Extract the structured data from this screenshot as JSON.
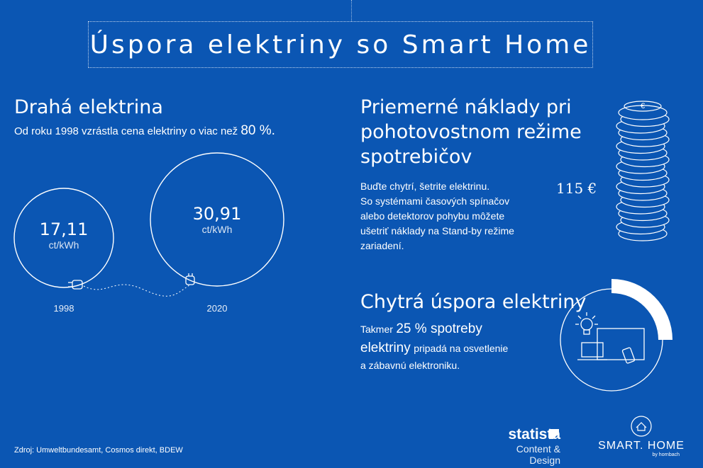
{
  "title": "Úspora elektriny so Smart Home",
  "left": {
    "heading": "Drahá elektrina",
    "text": "Od roku 1998 vzrástla cena elektriny o viac než",
    "highlight": "80 %.",
    "circles": [
      {
        "value": "17,11",
        "unit": "ct/kWh",
        "year": "1998"
      },
      {
        "value": "30,91",
        "unit": "ct/kWh",
        "year": "2020"
      }
    ]
  },
  "standby": {
    "heading_lines": [
      "Priemerné náklady pri",
      "pohotovostnom režime",
      "spotrebičov"
    ],
    "text_lines": [
      "Buďte chytrí, šetrite elektrinu.",
      "So systémami časových spínačov",
      "alebo detektorov pohybu môžete",
      "ušetriť náklady na Stand-by režime",
      "zariadení."
    ],
    "price": "115 €",
    "coin_symbol": "€"
  },
  "smart": {
    "heading": "Chytrá úspora elektriny",
    "line1_pre": "Takmer",
    "line1_big": "25 % spotreby",
    "line2_big": "elektriny",
    "line2_rest": "pripadá na osvetlenie",
    "line3": "a zábavnú elektroniku.",
    "share_percent": 25
  },
  "source": "Zdroj: Umweltbundesamt, Cosmos direkt, BDEW",
  "brand": {
    "statista": "statista",
    "statista_sub": "Content & Design",
    "smart_home": "SMART. HOME",
    "by": "by hornbach"
  },
  "colors": {
    "background": "#0b56b3",
    "foreground": "#ffffff"
  }
}
